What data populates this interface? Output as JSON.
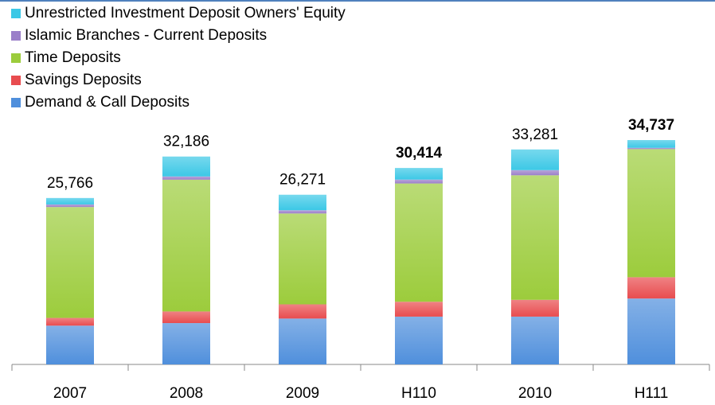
{
  "chart_data": {
    "type": "stacked_bar",
    "categories": [
      "2007",
      "2008",
      "2009",
      "H110",
      "2010",
      "H111"
    ],
    "series": [
      {
        "name": "Demand & Call Deposits",
        "color": "#4f8fdc",
        "values": [
          6000,
          6400,
          7100,
          7400,
          7400,
          10200
        ]
      },
      {
        "name": "Savings Deposits",
        "color": "#e84c4f",
        "values": [
          1200,
          1800,
          2200,
          2300,
          2600,
          3300
        ]
      },
      {
        "name": "Time Deposits",
        "color": "#9ccc3c",
        "values": [
          17166,
          20400,
          14071,
          18314,
          19281,
          19837
        ]
      },
      {
        "name": "Islamic Branches - Current Deposits",
        "color": "#9b7fc9",
        "values": [
          400,
          500,
          500,
          600,
          800,
          200
        ]
      },
      {
        "name": "Unrestricted Investment Deposit Owners' Equity",
        "color": "#3cc8e6",
        "values": [
          1000,
          3086,
          2400,
          1800,
          3200,
          1200
        ]
      }
    ],
    "totals": [
      25766,
      32186,
      26271,
      30414,
      33281,
      34737
    ],
    "total_labels": [
      "25,766",
      "32,186",
      "26,271",
      "30,414",
      "33,281",
      "34,737"
    ],
    "bold_totals": [
      false,
      false,
      false,
      true,
      false,
      true
    ]
  }
}
